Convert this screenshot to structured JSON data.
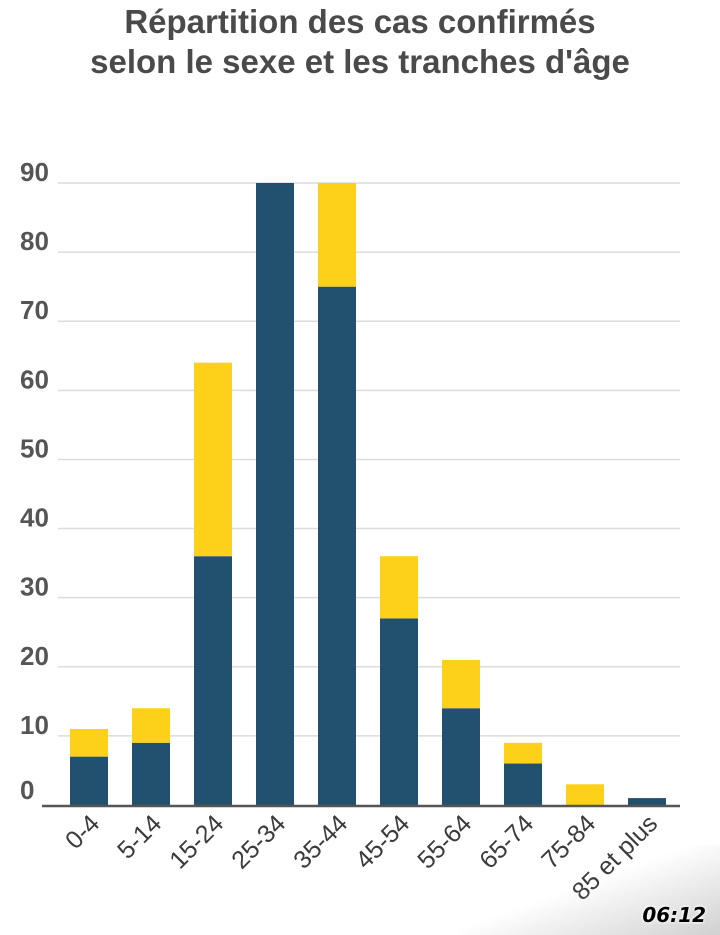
{
  "chart_data": {
    "type": "bar",
    "stacked": true,
    "title": [
      "Répartition des cas confirmés",
      "selon le sexe et les tranches d'âge"
    ],
    "categories": [
      "0-4",
      "5-14",
      "15-24",
      "25-34",
      "35-44",
      "45-54",
      "55-64",
      "65-74",
      "75-84",
      "85 et plus"
    ],
    "series": [
      {
        "values": [
          7,
          9,
          36,
          90,
          75,
          27,
          14,
          6,
          0,
          1
        ],
        "color": "#22506f"
      },
      {
        "values": [
          4,
          5,
          28,
          0,
          15,
          9,
          7,
          3,
          3,
          0
        ],
        "color": "#fdd11a"
      }
    ],
    "ylim": [
      0,
      90
    ],
    "yticks": [
      0,
      10,
      20,
      30,
      40,
      50,
      60,
      70,
      80,
      90
    ],
    "grid": true
  },
  "watermark": "06:12"
}
